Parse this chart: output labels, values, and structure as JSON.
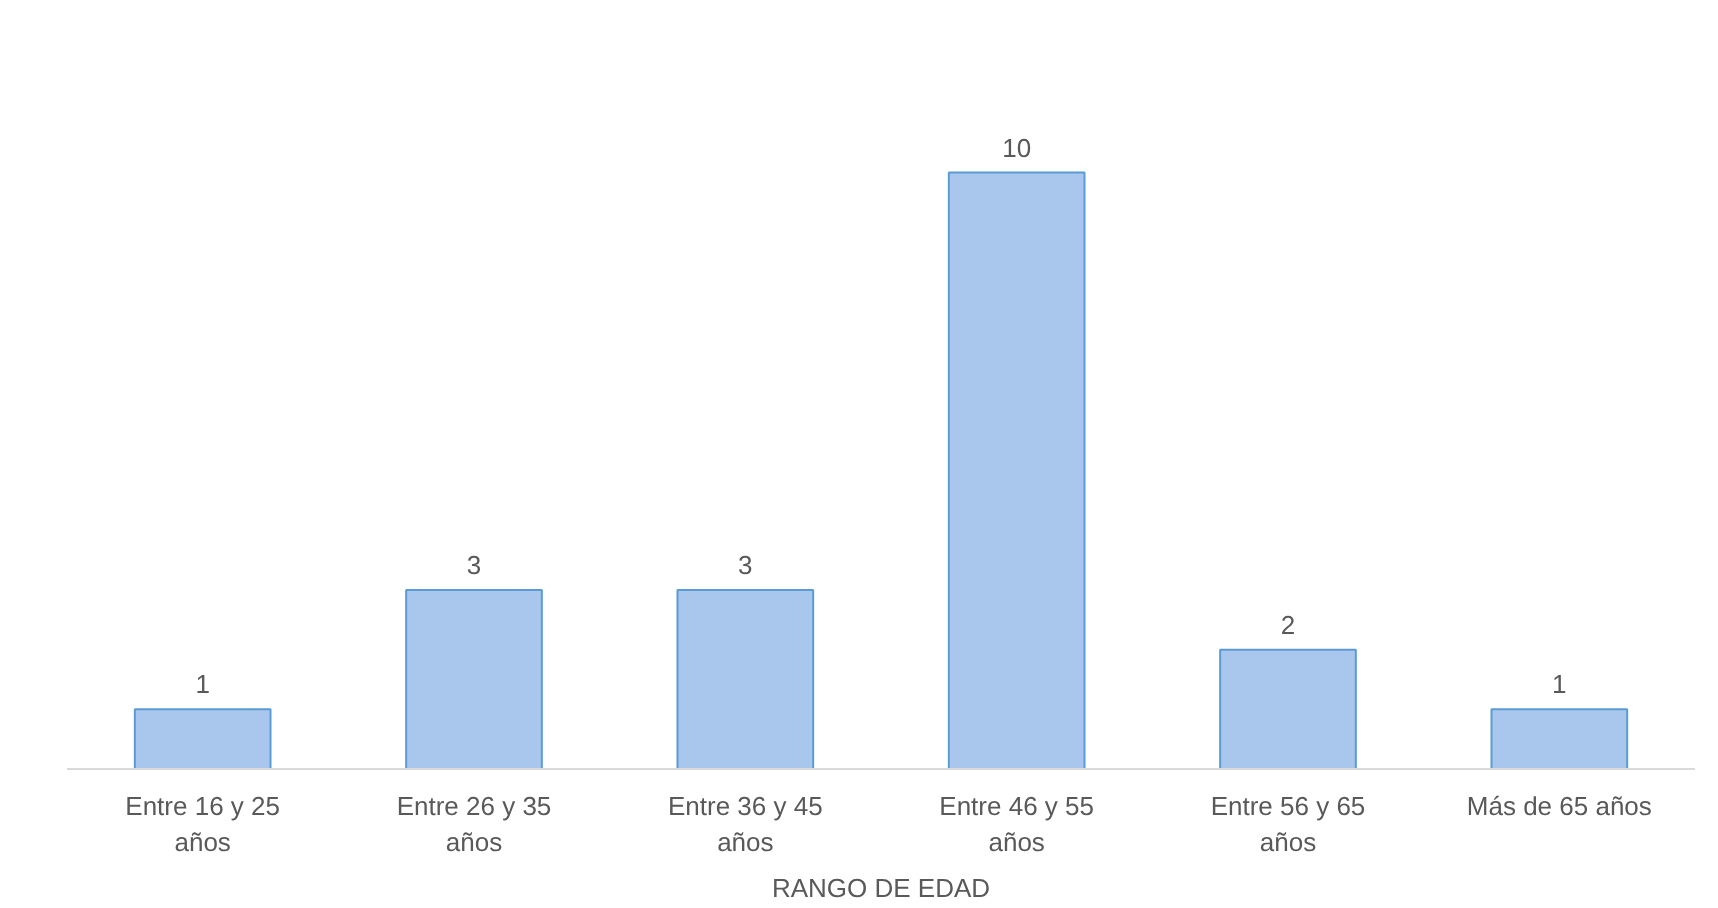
{
  "chart_data": {
    "type": "bar",
    "xlabel": "RANGO DE EDAD",
    "categories": [
      "Entre 16 y 25 años",
      "Entre 26 y 35 años",
      "Entre 36 y 45 años",
      "Entre 46 y 55 años",
      "Entre 56 y 65 años",
      "Más de 65 años"
    ],
    "values": [
      1,
      3,
      3,
      10,
      2,
      1
    ],
    "color": "#a9c7ec",
    "data_labels": true
  }
}
